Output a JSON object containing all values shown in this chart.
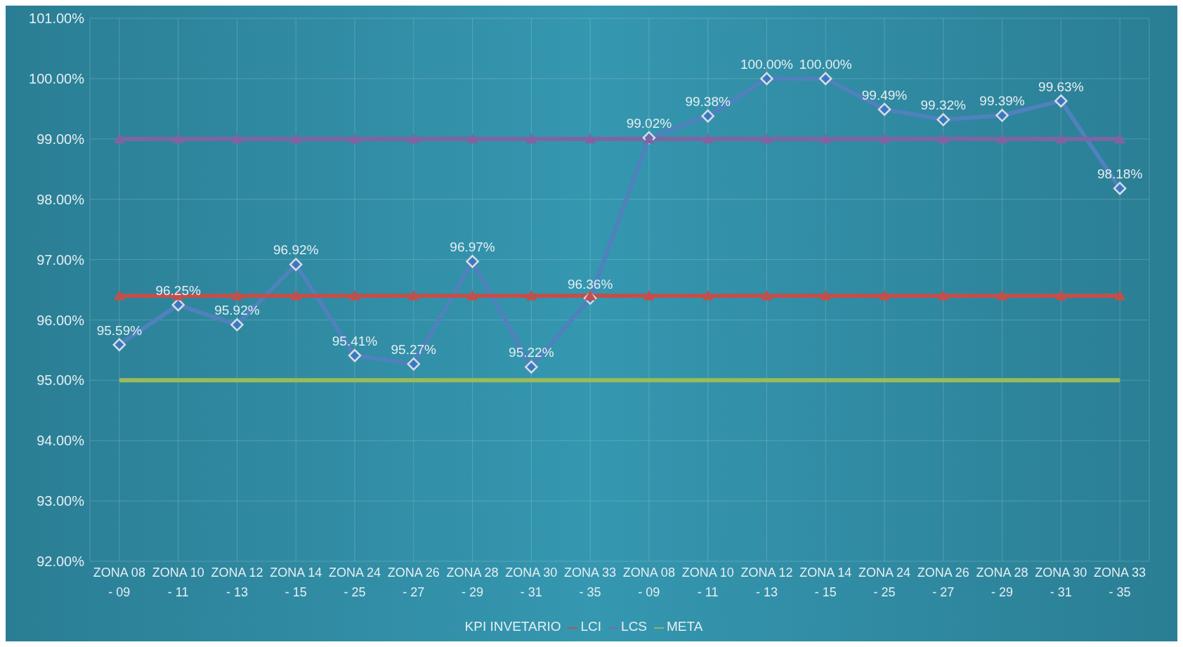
{
  "chart_data": {
    "type": "line",
    "categories": [
      "ZONA 08 - 09",
      "ZONA 10 - 11",
      "ZONA 12 - 13",
      "ZONA 14 - 15",
      "ZONA 24 - 25",
      "ZONA 26 - 27",
      "ZONA 28 - 29",
      "ZONA 30 - 31",
      "ZONA 33 - 35",
      "ZONA 08 - 09",
      "ZONA 10 - 11",
      "ZONA 12 - 13",
      "ZONA 14 - 15",
      "ZONA 24 - 25",
      "ZONA 26 - 27",
      "ZONA 28 - 29",
      "ZONA 30 - 31",
      "ZONA 33 - 35"
    ],
    "series": [
      {
        "name": "KPI INVETARIO",
        "color": "#4f81bd",
        "marker": "diamond",
        "values": [
          95.59,
          96.25,
          95.92,
          96.92,
          95.41,
          95.27,
          96.97,
          95.22,
          96.36,
          99.02,
          99.38,
          100.0,
          100.0,
          99.49,
          99.32,
          99.39,
          99.63,
          98.18
        ],
        "value_labels": [
          "95.59%",
          "96.25%",
          "95.92%",
          "96.92%",
          "95.41%",
          "95.27%",
          "96.97%",
          "95.22%",
          "96.36%",
          "99.02%",
          "99.38%",
          "100.00%",
          "100.00%",
          "99.49%",
          "99.32%",
          "99.39%",
          "99.63%",
          "98.18%"
        ]
      },
      {
        "name": "LCI",
        "color": "#c0504d",
        "marker": "triangle",
        "values": [
          96.4,
          96.4,
          96.4,
          96.4,
          96.4,
          96.4,
          96.4,
          96.4,
          96.4,
          96.4,
          96.4,
          96.4,
          96.4,
          96.4,
          96.4,
          96.4,
          96.4,
          96.4
        ]
      },
      {
        "name": "META",
        "color": "#9bbb59",
        "marker": "none",
        "values": [
          95.0,
          95.0,
          95.0,
          95.0,
          95.0,
          95.0,
          95.0,
          95.0,
          95.0,
          95.0,
          95.0,
          95.0,
          95.0,
          95.0,
          95.0,
          95.0,
          95.0,
          95.0
        ]
      },
      {
        "name": "LCS",
        "color": "#8064a2",
        "marker": "triangle",
        "values": [
          99.0,
          99.0,
          99.0,
          99.0,
          99.0,
          99.0,
          99.0,
          99.0,
          99.0,
          99.0,
          99.0,
          99.0,
          99.0,
          99.0,
          99.0,
          99.0,
          99.0,
          99.0
        ]
      }
    ],
    "ylim": [
      92,
      101
    ],
    "yticks": [
      {
        "value": 92,
        "label": "92.00%"
      },
      {
        "value": 93,
        "label": "93.00%"
      },
      {
        "value": 94,
        "label": "94.00%"
      },
      {
        "value": 95,
        "label": "95.00%"
      },
      {
        "value": 96,
        "label": "96.00%"
      },
      {
        "value": 97,
        "label": "97.00%"
      },
      {
        "value": 98,
        "label": "98.00%"
      },
      {
        "value": 99,
        "label": "99.00%"
      },
      {
        "value": 100,
        "label": "100.00%"
      },
      {
        "value": 101,
        "label": "101.00%"
      }
    ],
    "grid": true,
    "legend": "bottom",
    "line_style": "solid"
  }
}
